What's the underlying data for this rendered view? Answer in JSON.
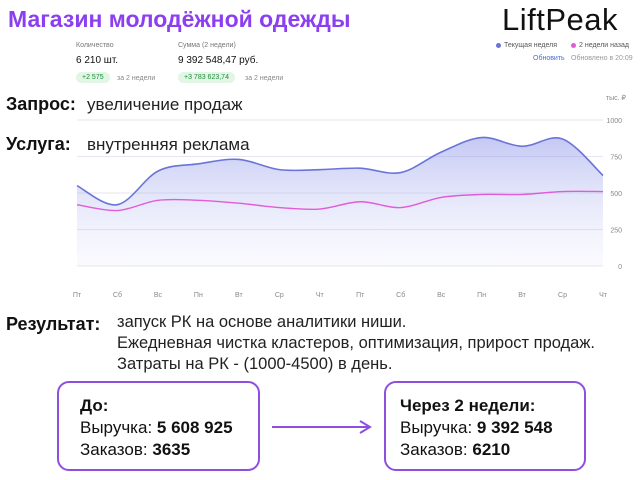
{
  "header": {
    "title": "Магазин молодёжной одежды",
    "logo": "LiftPeak"
  },
  "stats": {
    "quantity": {
      "label": "Количество",
      "value": "6 210 шт.",
      "delta": "+2 575",
      "delta_note": "за 2 недели"
    },
    "sum": {
      "label": "Сумма (2 недели)",
      "value": "9 392 548,47 руб.",
      "delta": "+3 783 623,74",
      "delta_note": "за 2 недели"
    }
  },
  "legend": {
    "current": {
      "label": "Текущая неделя",
      "color": "#6a74d8"
    },
    "prev": {
      "label": "2 недели назад",
      "color": "#e05cd8"
    },
    "refresh": "Обновить",
    "updated": "Обновлено в 20:09"
  },
  "request": {
    "label": "Запрос:",
    "value": "увеличение продаж"
  },
  "service": {
    "label": "Услуга:",
    "value": "внутренняя реклама"
  },
  "result": {
    "label": "Результат:",
    "lines": [
      "запуск РК на основе аналитики ниши.",
      "Ежедневная чистка кластеров, оптимизация, прирост продаж.",
      "Затраты на РК - (1000-4500) в день."
    ]
  },
  "before": {
    "title": "До:",
    "revenue_label": "Выручка:",
    "revenue": "5 608 925",
    "orders_label": "Заказов:",
    "orders": "3635"
  },
  "after": {
    "title": "Через 2 недели:",
    "revenue_label": "Выручка:",
    "revenue": "9 392 548",
    "orders_label": "Заказов:",
    "orders": "6210"
  },
  "chart_data": {
    "type": "area",
    "unit_label": "тыс. ₽",
    "ylim": [
      0,
      1000
    ],
    "yticks": [
      0,
      250,
      500,
      750,
      1000
    ],
    "categories": [
      "Пт",
      "Сб",
      "Вс",
      "Пн",
      "Вт",
      "Ср",
      "Чт",
      "Пт",
      "Сб",
      "Вс",
      "Пн",
      "Вт",
      "Ср",
      "Чт"
    ],
    "series": [
      {
        "name": "Текущая неделя",
        "color": "#6a74d8",
        "values": [
          550,
          420,
          650,
          700,
          730,
          660,
          660,
          670,
          640,
          780,
          880,
          820,
          870,
          620
        ]
      },
      {
        "name": "2 недели назад",
        "color": "#e05cd8",
        "values": [
          420,
          380,
          450,
          450,
          430,
          400,
          390,
          440,
          400,
          470,
          490,
          490,
          510,
          510
        ]
      }
    ],
    "grid": true
  }
}
